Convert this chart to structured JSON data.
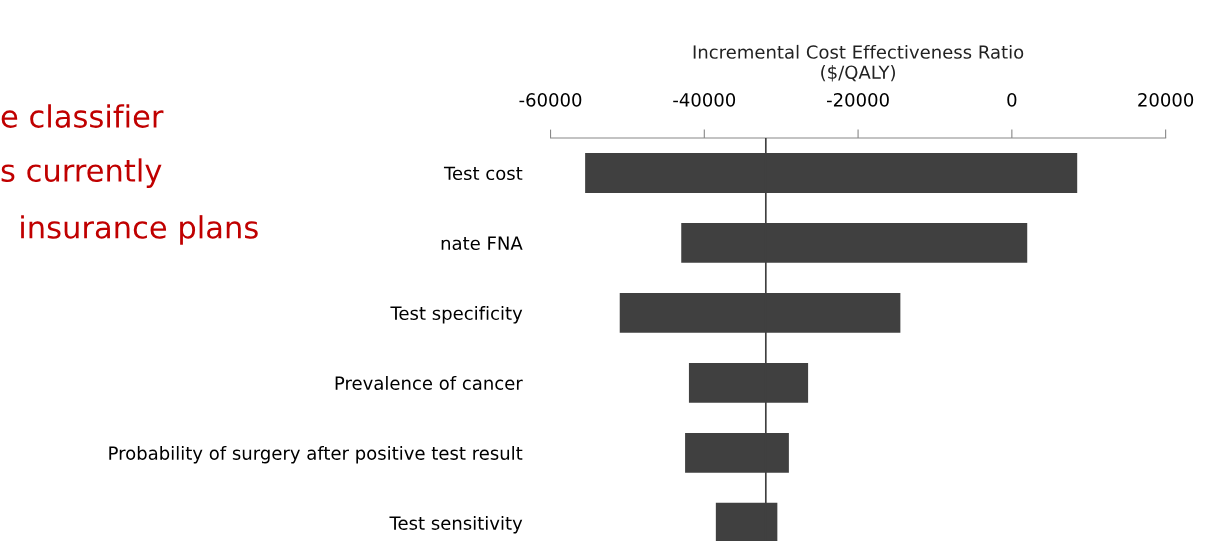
{
  "chart_data": {
    "type": "bar",
    "orientation": "horizontal",
    "xlabel": "Incremental Cost Effectiveness Ratio\n($/QALY)",
    "categories": [
      "Test cost",
      "nate FNA",
      "Test specificity",
      "Prevalence of cancer",
      "Probability of surgery after positive test result",
      "Test sensitivity"
    ],
    "base": [
      -55500,
      -43000,
      -51000,
      -42000,
      -42500,
      -38500
    ],
    "values": [
      64000,
      45000,
      36500,
      15500,
      13500,
      8000
    ],
    "color": "#404040",
    "xlim": [
      -60000,
      20000
    ],
    "xticks": [
      -60000,
      -40000,
      -20000,
      0,
      20000
    ],
    "ref_lines": [
      {
        "axis": "x",
        "value": -32000,
        "color": "#404040"
      }
    ],
    "annotations": [
      "e classifier",
      "s currently",
      "insurance plans"
    ],
    "grid": false,
    "legend": false
  }
}
